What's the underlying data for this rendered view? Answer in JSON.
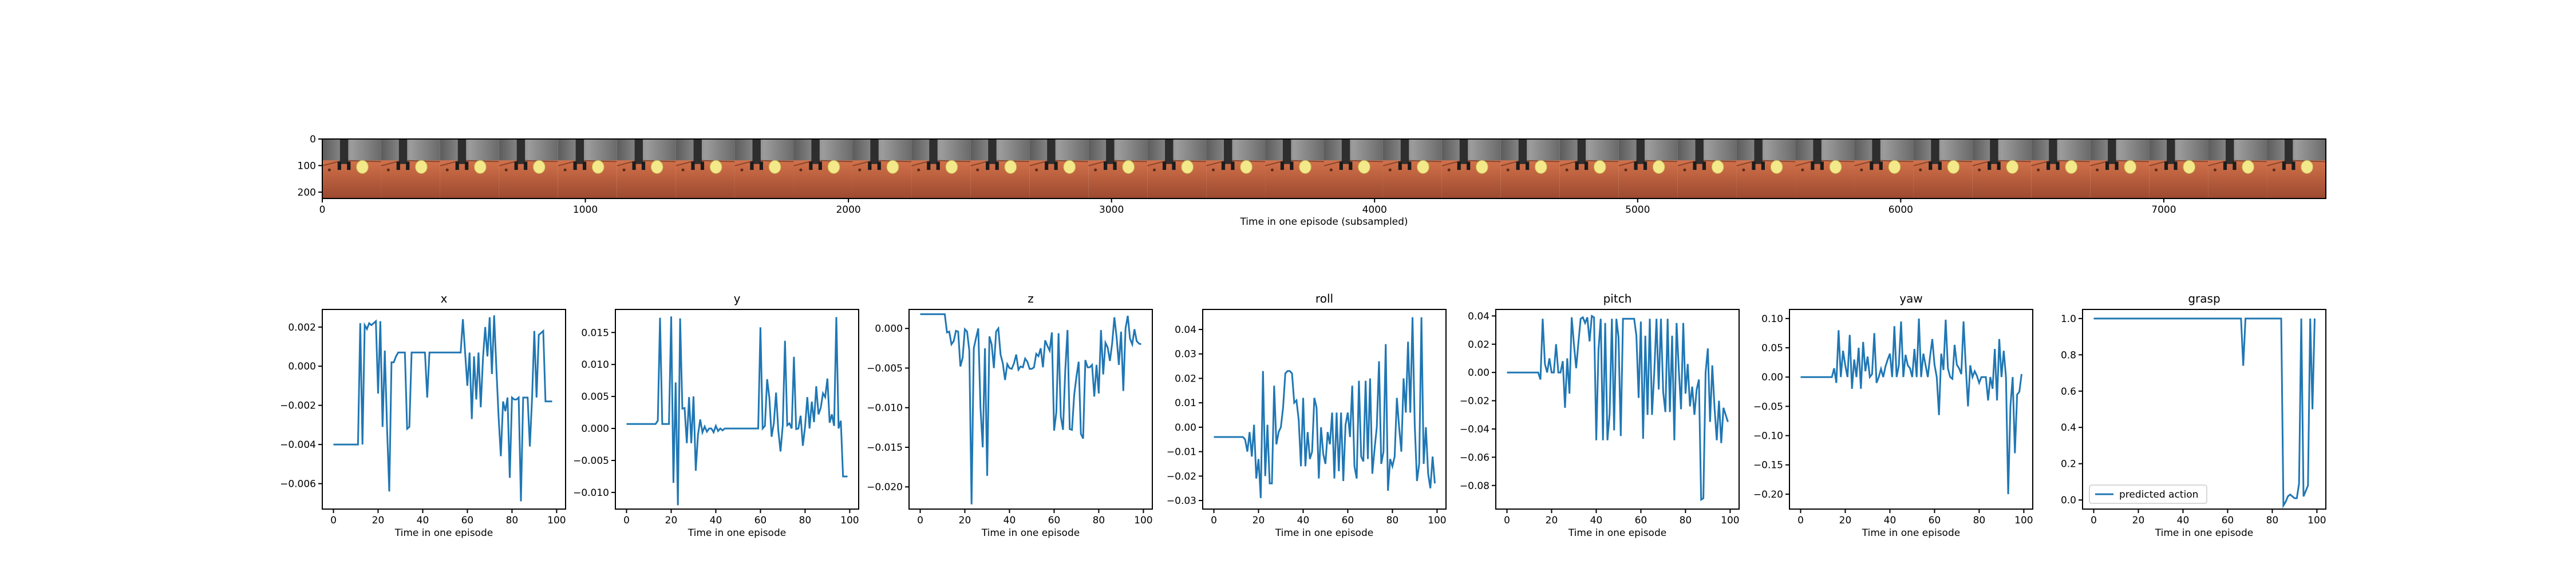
{
  "chart_data": [
    {
      "type": "image-strip",
      "xlabel": "Time in one episode (subsampled)",
      "xticks": [
        0,
        1000,
        2000,
        3000,
        4000,
        5000,
        6000,
        7000
      ],
      "yticks": [
        0,
        100,
        200
      ],
      "xlim": [
        0,
        7616
      ],
      "ylim": [
        224,
        0
      ],
      "frames": 34,
      "colors": {
        "floor": "#c06040",
        "ball": "#f3e88a",
        "backdrop": "#808080"
      }
    },
    {
      "type": "line",
      "title": "x",
      "xlabel": "Time in one episode",
      "xlim": [
        -5,
        104
      ],
      "ylim": [
        -0.0073,
        0.0029
      ],
      "xticks": [
        0,
        20,
        40,
        60,
        80,
        100
      ],
      "yticks": [
        -0.006,
        -0.004,
        -0.002,
        0.0,
        0.002
      ],
      "ytick_labels": [
        "−0.006",
        "−0.004",
        "−0.002",
        "0.000",
        "0.002"
      ],
      "series": [
        {
          "values": [
            -0.004,
            -0.004,
            -0.004,
            -0.004,
            -0.004,
            -0.004,
            -0.004,
            -0.004,
            -0.004,
            -0.004,
            -0.004,
            -0.004,
            0.0022,
            -0.004,
            0.0021,
            0.0019,
            0.0022,
            0.0021,
            0.0022,
            0.0023,
            -0.0014,
            0.0023,
            -0.0031,
            0.0008,
            -0.0031,
            -0.0064,
            0.0002,
            0.0002,
            0.0005,
            0.0007,
            0.0007,
            0.0007,
            0.0007,
            -0.0032,
            -0.0031,
            0.0007,
            0.0007,
            0.0007,
            0.0007,
            0.0007,
            0.0007,
            0.0007,
            -0.0016,
            0.0007,
            0.0007,
            0.0007,
            0.0007,
            0.0007,
            0.0007,
            0.0007,
            0.0007,
            0.0007,
            0.0007,
            0.0007,
            0.0007,
            0.0007,
            0.0007,
            0.0007,
            0.0024,
            0.0007,
            -0.001,
            0.0007,
            -0.0027,
            0.0005,
            -0.0017,
            0.0007,
            -0.0021,
            0.0004,
            0.002,
            0.0005,
            0.0025,
            -0.0004,
            0.0026,
            -0.0001,
            -0.0026,
            -0.0046,
            -0.0018,
            -0.0023,
            -0.0016,
            -0.0057,
            -0.0016,
            -0.0017,
            -0.0017,
            -0.0016,
            -0.0069,
            -0.0016,
            -0.0016,
            -0.0016,
            -0.0041,
            -0.0016,
            0.0018,
            -0.0016,
            0.0016,
            0.0017,
            0.0018,
            -0.0018,
            -0.0018,
            -0.0018,
            -0.0018
          ]
        }
      ]
    },
    {
      "type": "line",
      "title": "y",
      "xlabel": "Time in one episode",
      "xlim": [
        -5,
        104
      ],
      "ylim": [
        -0.0126,
        0.0186
      ],
      "xticks": [
        0,
        20,
        40,
        60,
        80,
        100
      ],
      "yticks": [
        -0.01,
        -0.005,
        0.0,
        0.005,
        0.01,
        0.015
      ],
      "ytick_labels": [
        "−0.010",
        "−0.005",
        "0.000",
        "0.005",
        "0.010",
        "0.015"
      ],
      "series": [
        {
          "values": [
            0.0007,
            0.0007,
            0.0007,
            0.0007,
            0.0007,
            0.0007,
            0.0007,
            0.0007,
            0.0007,
            0.0007,
            0.0007,
            0.0007,
            0.0007,
            0.0007,
            0.0012,
            0.0173,
            0.0007,
            0.0007,
            0.0007,
            0.0007,
            0.0175,
            -0.0085,
            0.0072,
            -0.012,
            0.0172,
            0.0031,
            0.0032,
            -0.0023,
            0.0049,
            -0.0023,
            0.005,
            -0.0066,
            -0.001,
            0.0014,
            -0.0006,
            0.0003,
            -0.0005,
            0.0,
            0.0,
            -0.0006,
            0.0004,
            -0.0004,
            0.0,
            -0.0003,
            0.0,
            0.0,
            0.0,
            0.0,
            0.0,
            0.0,
            0.0,
            0.0,
            0.0,
            0.0,
            0.0,
            0.0,
            0.0,
            0.0,
            0.0,
            0.0,
            0.0158,
            0.0,
            0.0004,
            0.0077,
            0.0048,
            -0.0013,
            0.0008,
            0.0056,
            -0.0003,
            -0.0036,
            0.0005,
            0.0137,
            0.0005,
            0.0008,
            0.0,
            0.0112,
            -0.0001,
            0.0,
            0.002,
            -0.0027,
            0.0003,
            0.0049,
            0.0,
            0.0042,
            0.001,
            0.0066,
            0.0022,
            0.0032,
            0.0055,
            0.0049,
            0.0078,
            0.0009,
            0.0022,
            0.0004,
            0.0174,
            0.0,
            0.0012,
            -0.0075,
            -0.0075,
            -0.0075
          ]
        }
      ]
    },
    {
      "type": "line",
      "title": "z",
      "xlabel": "Time in one episode",
      "xlim": [
        -5,
        104
      ],
      "ylim": [
        -0.0228,
        0.0024
      ],
      "xticks": [
        0,
        20,
        40,
        60,
        80,
        100
      ],
      "yticks": [
        -0.02,
        -0.015,
        -0.01,
        -0.005,
        0.0
      ],
      "ytick_labels": [
        "−0.020",
        "−0.015",
        "−0.010",
        "−0.005",
        "0.000"
      ],
      "series": [
        {
          "values": [
            0.0018,
            0.0018,
            0.0018,
            0.0018,
            0.0018,
            0.0018,
            0.0018,
            0.0018,
            0.0018,
            0.0018,
            0.0018,
            0.0018,
            -0.0005,
            -0.0004,
            -0.002,
            -0.0016,
            -0.0003,
            -0.0004,
            -0.0048,
            -0.0037,
            -0.0001,
            -0.0004,
            -0.0028,
            -0.0222,
            -0.0025,
            -0.0012,
            0.0,
            -0.01,
            -0.015,
            -0.0025,
            -0.0186,
            -0.001,
            -0.002,
            -0.005,
            -0.0004,
            0.0,
            -0.0033,
            -0.0044,
            -0.0065,
            -0.0045,
            -0.005,
            -0.0051,
            -0.0044,
            -0.0033,
            -0.0052,
            -0.0048,
            -0.0049,
            -0.0038,
            -0.0042,
            -0.0051,
            -0.0051,
            -0.0049,
            -0.0032,
            -0.0035,
            -0.0025,
            -0.0049,
            -0.0015,
            -0.0022,
            -0.0028,
            -0.0005,
            -0.0129,
            -0.0106,
            -0.0006,
            -0.0111,
            -0.0128,
            -0.0053,
            -0.0002,
            -0.0127,
            -0.0128,
            -0.0084,
            -0.0061,
            -0.0042,
            -0.0133,
            -0.0139,
            -0.004,
            -0.0049,
            -0.0049,
            -0.0046,
            -0.0086,
            -0.0046,
            -0.0082,
            -0.0002,
            -0.0058,
            -0.0018,
            -0.0024,
            -0.0041,
            -0.0019,
            0.0014,
            -0.0011,
            -0.0046,
            -0.0004,
            -0.0079,
            0.0,
            0.0016,
            -0.0013,
            -0.002,
            -0.0001,
            -0.0016,
            -0.0019,
            -0.002
          ]
        }
      ]
    },
    {
      "type": "line",
      "title": "roll",
      "xlabel": "Time in one episode",
      "xlim": [
        -5,
        104
      ],
      "ylim": [
        -0.0335,
        0.0482
      ],
      "xticks": [
        0,
        20,
        40,
        60,
        80,
        100
      ],
      "yticks": [
        -0.03,
        -0.02,
        -0.01,
        0.0,
        0.01,
        0.02,
        0.03,
        0.04
      ],
      "ytick_labels": [
        "−0.03",
        "−0.02",
        "−0.01",
        "0.00",
        "0.01",
        "0.02",
        "0.03",
        "0.04"
      ],
      "series": [
        {
          "values": [
            -0.004,
            -0.004,
            -0.004,
            -0.004,
            -0.004,
            -0.004,
            -0.004,
            -0.004,
            -0.004,
            -0.004,
            -0.004,
            -0.004,
            -0.004,
            -0.004,
            -0.005,
            -0.01,
            -0.002,
            -0.012,
            0.001,
            -0.021,
            -0.013,
            -0.029,
            0.023,
            -0.02,
            0.001,
            -0.023,
            -0.023,
            0.017,
            -0.007,
            -0.002,
            0.0,
            0.008,
            0.022,
            0.023,
            0.023,
            0.022,
            0.01,
            0.011,
            0.003,
            -0.016,
            0.012,
            -0.016,
            -0.002,
            -0.013,
            -0.01,
            0.012,
            0.008,
            -0.021,
            0.0,
            -0.011,
            -0.015,
            -0.002,
            -0.007,
            0.006,
            -0.021,
            0.006,
            -0.018,
            0.006,
            -0.022,
            0.001,
            0.006,
            -0.004,
            0.017,
            -0.016,
            -0.021,
            0.019,
            -0.012,
            -0.014,
            0.019,
            -0.013,
            0.02,
            -0.019,
            -0.009,
            0.0,
            0.027,
            -0.015,
            -0.01,
            0.034,
            -0.026,
            -0.013,
            -0.016,
            -0.012,
            0.012,
            0.0,
            -0.01,
            0.02,
            0.006,
            0.035,
            0.006,
            0.045,
            0.001,
            -0.022,
            -0.015,
            0.045,
            -0.015,
            0.0,
            -0.019,
            -0.025,
            -0.012,
            -0.023
          ]
        }
      ]
    },
    {
      "type": "line",
      "title": "pitch",
      "xlabel": "Time in one episode",
      "xlim": [
        -5,
        104
      ],
      "ylim": [
        -0.0967,
        0.0446
      ],
      "xticks": [
        0,
        20,
        40,
        60,
        80,
        100
      ],
      "yticks": [
        -0.08,
        -0.06,
        -0.04,
        -0.02,
        0.0,
        0.02,
        0.04
      ],
      "ytick_labels": [
        "−0.08",
        "−0.06",
        "−0.04",
        "−0.02",
        "0.00",
        "0.02",
        "0.04"
      ],
      "series": [
        {
          "values": [
            0.0,
            0.0,
            0.0,
            0.0,
            0.0,
            0.0,
            0.0,
            0.0,
            0.0,
            0.0,
            0.0,
            0.0,
            0.0,
            0.0,
            0.0,
            -0.005,
            0.038,
            0.006,
            0.0,
            0.01,
            0.0,
            0.0,
            0.02,
            0.0,
            0.0,
            0.008,
            -0.025,
            0.01,
            -0.015,
            0.039,
            0.02,
            0.003,
            0.021,
            0.038,
            0.039,
            0.035,
            0.039,
            0.022,
            0.04,
            0.039,
            -0.048,
            0.016,
            0.038,
            -0.048,
            0.035,
            -0.048,
            -0.029,
            0.038,
            -0.041,
            0.038,
            0.025,
            -0.045,
            0.038,
            0.038,
            0.038,
            0.038,
            0.038,
            0.038,
            0.026,
            -0.018,
            0.036,
            -0.047,
            0.026,
            -0.03,
            0.038,
            -0.03,
            0.0,
            0.038,
            -0.012,
            0.038,
            -0.014,
            -0.028,
            0.038,
            -0.028,
            0.026,
            -0.048,
            0.035,
            0.002,
            -0.026,
            0.035,
            -0.015,
            0.006,
            -0.024,
            -0.01,
            -0.03,
            -0.012,
            -0.005,
            -0.09,
            -0.089,
            0.0,
            0.017,
            -0.035,
            0.005,
            -0.025,
            -0.048,
            -0.02,
            -0.05,
            -0.025,
            -0.03,
            -0.035
          ]
        }
      ]
    },
    {
      "type": "line",
      "title": "yaw",
      "xlabel": "Time in one episode",
      "xlim": [
        -5,
        104
      ],
      "ylim": [
        -0.2255,
        0.1155
      ],
      "xticks": [
        0,
        20,
        40,
        60,
        80,
        100
      ],
      "yticks": [
        -0.2,
        -0.15,
        -0.1,
        -0.05,
        0.0,
        0.05,
        0.1
      ],
      "ytick_labels": [
        "−0.20",
        "−0.15",
        "−0.10",
        "−0.05",
        "0.00",
        "0.05",
        "0.10"
      ],
      "series": [
        {
          "values": [
            0.0,
            0.0,
            0.0,
            0.0,
            0.0,
            0.0,
            0.0,
            0.0,
            0.0,
            0.0,
            0.0,
            0.0,
            0.0,
            0.0,
            0.0,
            0.015,
            -0.01,
            0.08,
            0.0,
            0.045,
            0.02,
            0.0,
            0.072,
            -0.02,
            0.03,
            0.0,
            0.05,
            -0.02,
            0.06,
            0.01,
            0.035,
            0.0,
            0.005,
            0.075,
            -0.01,
            0.0,
            0.014,
            0.0,
            0.018,
            0.03,
            0.04,
            0.0,
            0.087,
            0.0,
            0.02,
            0.095,
            0.0,
            0.038,
            0.02,
            0.015,
            0.0,
            0.048,
            0.0,
            0.1,
            0.0,
            0.04,
            0.02,
            0.0,
            0.035,
            0.065,
            0.021,
            0.0,
            -0.065,
            0.04,
            0.012,
            0.098,
            0.015,
            0.0,
            -0.003,
            0.055,
            0.021,
            0.015,
            0.005,
            0.095,
            0.018,
            -0.05,
            0.02,
            0.0,
            0.01,
            0.002,
            -0.01,
            0.0,
            0.0,
            0.0,
            -0.04,
            0.0,
            -0.02,
            0.048,
            -0.04,
            0.065,
            0.0,
            0.045,
            0.0,
            -0.2,
            -0.05,
            0.0,
            -0.13,
            -0.03,
            -0.025,
            0.005
          ]
        }
      ]
    },
    {
      "type": "line",
      "title": "grasp",
      "xlabel": "Time in one episode",
      "xlim": [
        -5,
        104
      ],
      "ylim": [
        -0.05,
        1.05
      ],
      "xticks": [
        0,
        20,
        40,
        60,
        80,
        100
      ],
      "yticks": [
        0.0,
        0.2,
        0.4,
        0.6,
        0.8,
        1.0
      ],
      "ytick_labels": [
        "0.0",
        "0.2",
        "0.4",
        "0.6",
        "0.8",
        "1.0"
      ],
      "legend": {
        "label": "predicted action",
        "position": "lower-left"
      },
      "series": [
        {
          "values": [
            1.0,
            1.0,
            1.0,
            1.0,
            1.0,
            1.0,
            1.0,
            1.0,
            1.0,
            1.0,
            1.0,
            1.0,
            1.0,
            1.0,
            1.0,
            1.0,
            1.0,
            1.0,
            1.0,
            1.0,
            1.0,
            1.0,
            1.0,
            1.0,
            1.0,
            1.0,
            1.0,
            1.0,
            1.0,
            1.0,
            1.0,
            1.0,
            1.0,
            1.0,
            1.0,
            1.0,
            1.0,
            1.0,
            1.0,
            1.0,
            1.0,
            1.0,
            1.0,
            1.0,
            1.0,
            1.0,
            1.0,
            1.0,
            1.0,
            1.0,
            1.0,
            1.0,
            1.0,
            1.0,
            1.0,
            1.0,
            1.0,
            1.0,
            1.0,
            1.0,
            1.0,
            1.0,
            1.0,
            1.0,
            1.0,
            1.0,
            1.0,
            0.74,
            1.0,
            1.0,
            1.0,
            1.0,
            1.0,
            1.0,
            1.0,
            1.0,
            1.0,
            1.0,
            1.0,
            1.0,
            1.0,
            1.0,
            1.0,
            1.0,
            1.0,
            -0.03,
            -0.01,
            0.02,
            0.03,
            0.02,
            0.01,
            0.01,
            0.09,
            1.0,
            0.02,
            0.05,
            0.08,
            1.0,
            0.5,
            1.0
          ]
        }
      ]
    }
  ]
}
